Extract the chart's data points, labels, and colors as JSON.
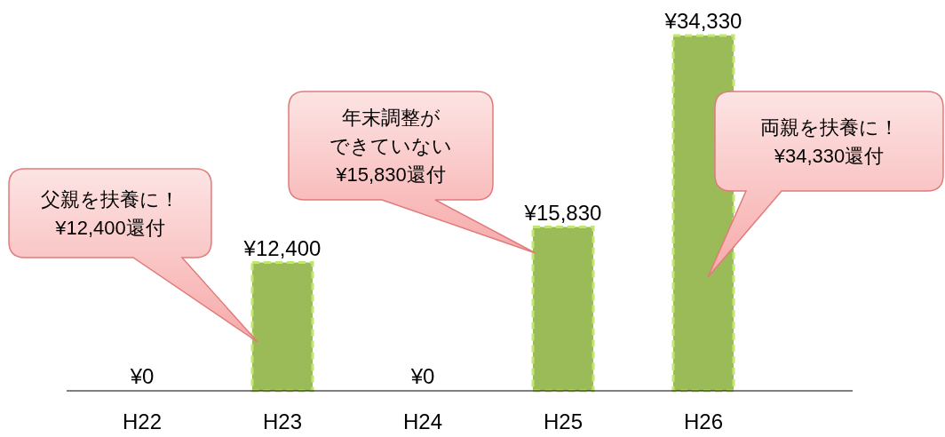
{
  "chart_data": {
    "type": "bar",
    "categories": [
      "H22",
      "H23",
      "H24",
      "H25",
      "H26"
    ],
    "values": [
      0,
      12400,
      0,
      15830,
      34330
    ],
    "color": "#9bbb59",
    "value_labels": [
      "¥0",
      "¥12,400",
      "¥0",
      "¥15,830",
      "¥34,330"
    ],
    "annotations": [
      "父親を扶養に！¥12,400還付",
      "年末調整ができていない¥15,830還付",
      "両親を扶養に！¥34,330還付"
    ]
  }
}
